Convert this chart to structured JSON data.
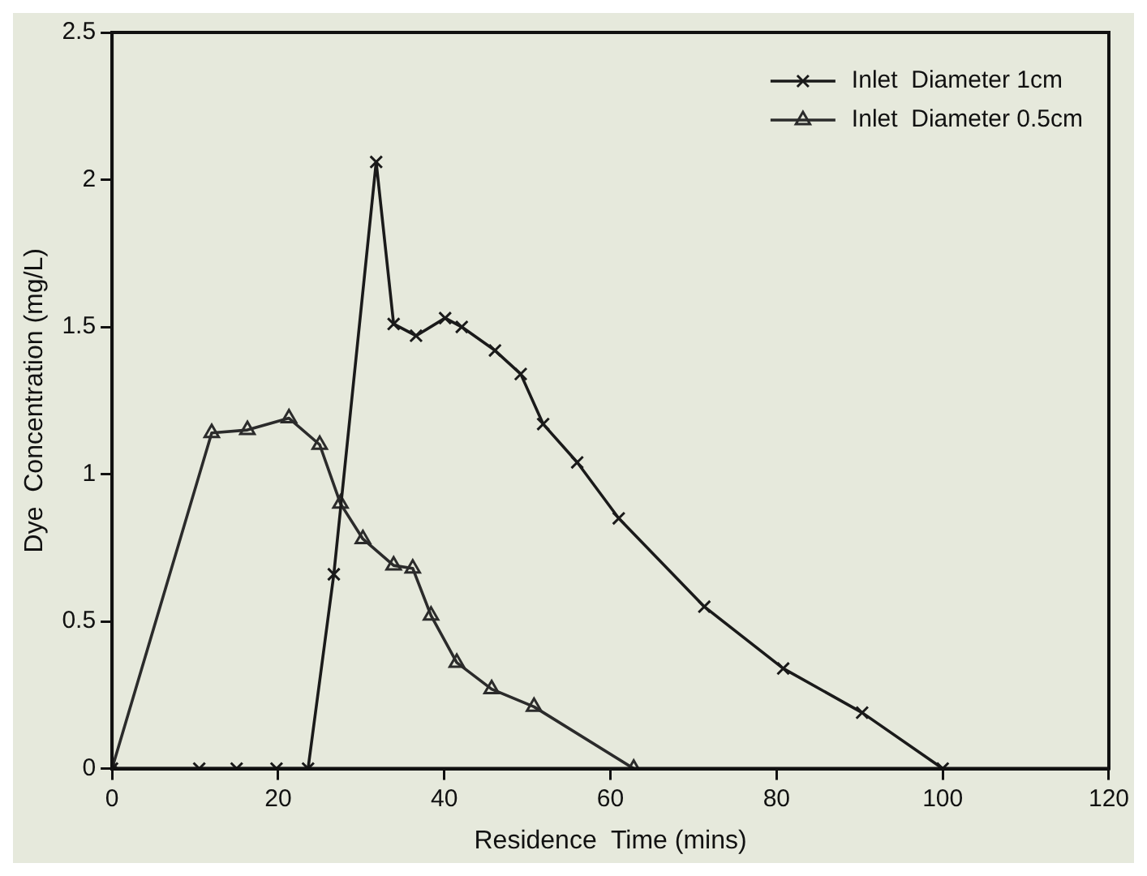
{
  "chart_data": {
    "type": "line",
    "xlabel": "Residence  Time (mins)",
    "ylabel": "Dye  Concentration (mg/L)",
    "xlim": [
      0,
      120
    ],
    "xticks": [
      0,
      20,
      40,
      60,
      80,
      100,
      120
    ],
    "ylim": [
      0,
      2.5
    ],
    "yticks": [
      0,
      0.5,
      1,
      1.5,
      2,
      2.5
    ],
    "grid": false,
    "legend": "top right",
    "line_style": "solid",
    "series": [
      {
        "name": "Inlet  Diameter 1cm",
        "color": "#1a1a1a",
        "marker": "cross",
        "x": [
          0,
          10.5,
          15,
          19.8,
          23.6,
          26.7,
          31.8,
          33.9,
          36.6,
          40.1,
          42.1,
          46.1,
          49.2,
          51.9,
          56,
          61,
          71.3,
          80.8,
          90.3,
          100
        ],
        "values": [
          0,
          0,
          0,
          0,
          0,
          0.66,
          2.06,
          1.51,
          1.47,
          1.53,
          1.5,
          1.42,
          1.34,
          1.17,
          1.04,
          0.85,
          0.55,
          0.34,
          0.19,
          0
        ]
      },
      {
        "name": "Inlet  Diameter 0.5cm",
        "color": "#2b2b2b",
        "marker": "triangle",
        "x": [
          0,
          12,
          16.3,
          21.3,
          25,
          27.5,
          30.2,
          33.9,
          36.2,
          38.4,
          41.5,
          45.7,
          50.8,
          62.8
        ],
        "values": [
          0,
          1.14,
          1.15,
          1.19,
          1.1,
          0.9,
          0.78,
          0.69,
          0.68,
          0.52,
          0.36,
          0.27,
          0.21,
          0
        ]
      }
    ]
  }
}
